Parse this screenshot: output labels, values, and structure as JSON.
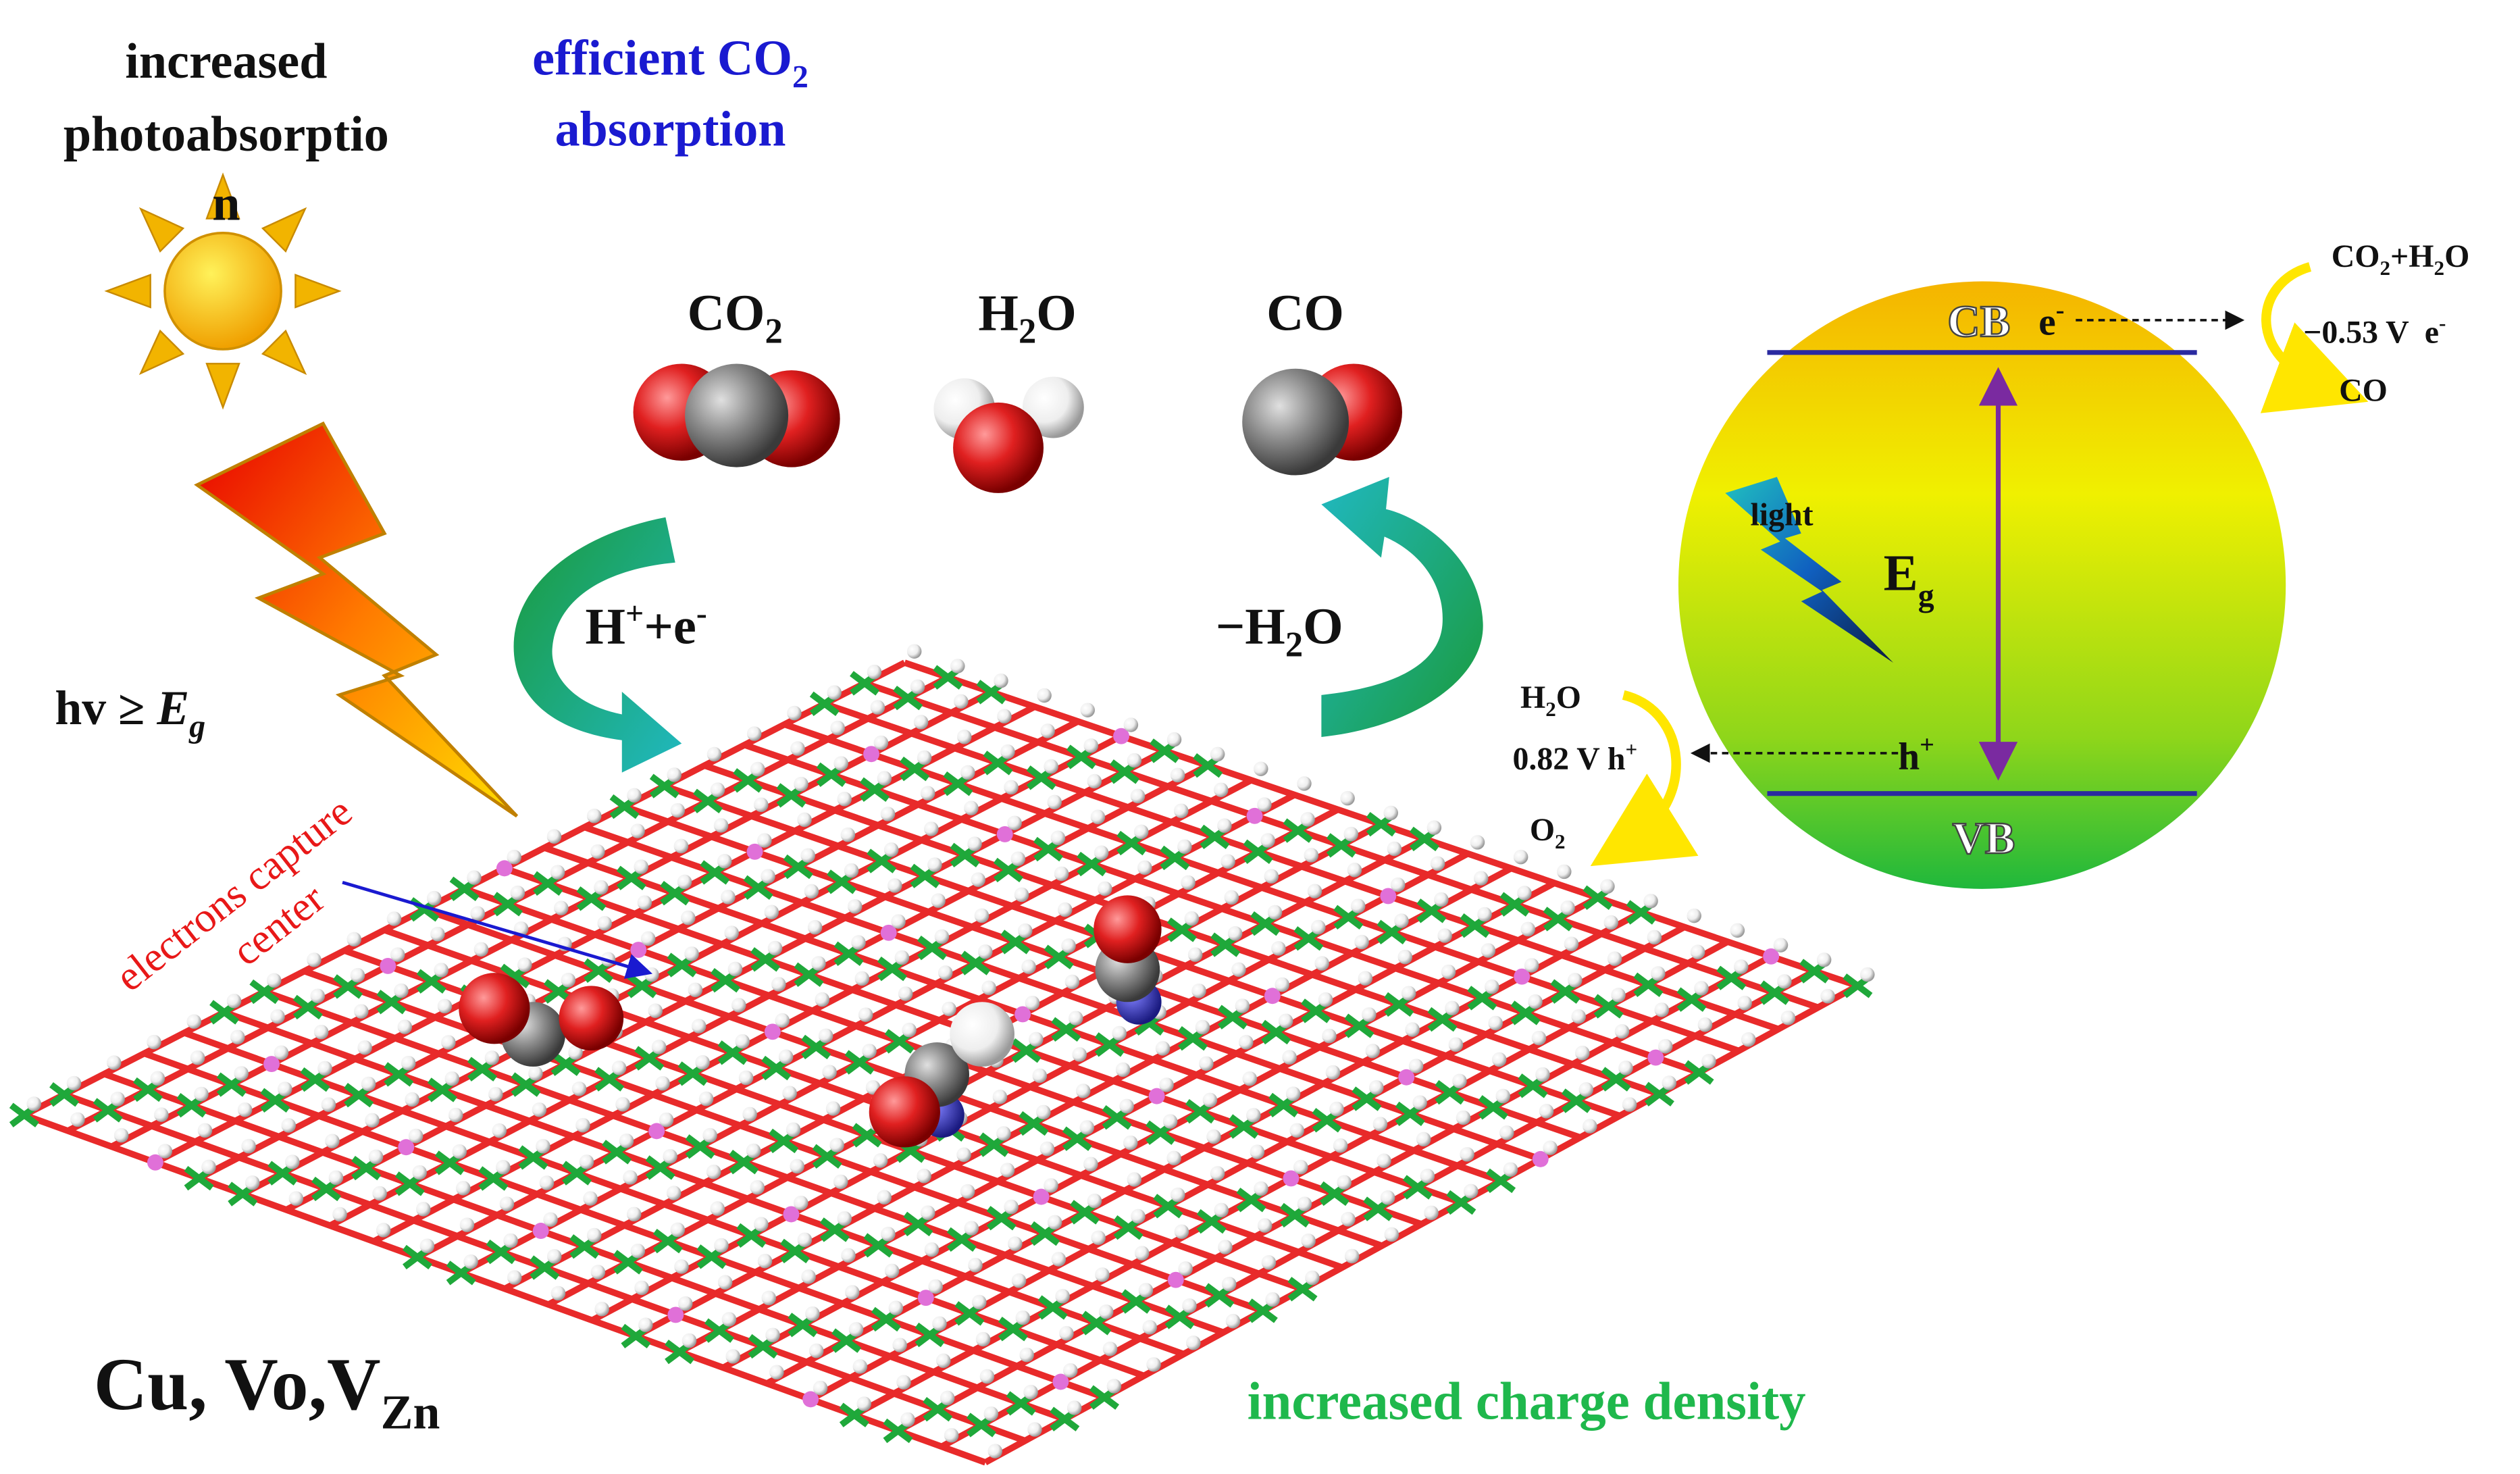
{
  "left": {
    "photo_title": [
      "increased",
      "photoabsorptio",
      "n"
    ],
    "light_condition": [
      "hv ≥ ",
      "E",
      "g"
    ],
    "electrons_capture": [
      "electrons capture",
      "center"
    ],
    "defects": [
      "Cu, Vo,V",
      "Zn"
    ]
  },
  "top": {
    "co2_absorption": [
      "efficient CO",
      "2",
      "absorption"
    ],
    "molecules": [
      [
        "CO",
        "2"
      ],
      [
        "H",
        "2",
        "O"
      ],
      [
        "CO"
      ]
    ],
    "forward_step": [
      "H",
      "+",
      "+e",
      "-"
    ],
    "reverse_step": [
      "−H",
      "2",
      "O"
    ]
  },
  "bottom": {
    "charge_density": "increased charge density"
  },
  "band_diagram": {
    "cb": "CB",
    "vb": "VB",
    "electron": [
      "e",
      "-"
    ],
    "hole": [
      "h",
      "+"
    ],
    "light": "light",
    "gap": [
      "E",
      "g"
    ],
    "reduction": {
      "reactant": [
        "CO",
        "2",
        "+H",
        "2",
        "O"
      ],
      "potential": [
        "−0.53 V  e",
        "-"
      ],
      "product": "CO"
    },
    "oxidation": {
      "reactant": [
        "H",
        "2",
        "O"
      ],
      "potential": [
        "0.82 V h",
        "+"
      ],
      "product": [
        "O",
        "2"
      ]
    }
  }
}
